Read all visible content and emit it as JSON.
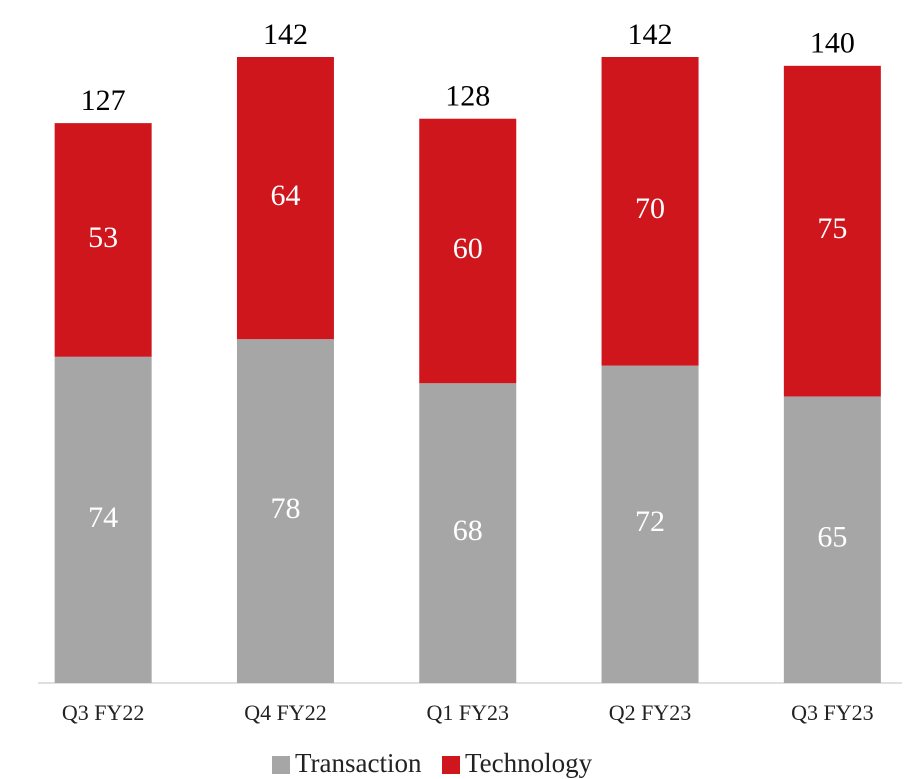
{
  "chart_data": {
    "type": "stacked_bar",
    "categories": [
      "Q3 FY22",
      "Q4 FY22",
      "Q1 FY23",
      "Q2 FY23",
      "Q3 FY23"
    ],
    "series": [
      {
        "name": "Transaction",
        "color": "#a6a6a6",
        "values": [
          74,
          78,
          68,
          72,
          65
        ]
      },
      {
        "name": "Technology",
        "color": "#d0161d",
        "values": [
          53,
          64,
          60,
          70,
          75
        ]
      }
    ],
    "totals": [
      127,
      142,
      128,
      142,
      140
    ],
    "legend": "bottom"
  }
}
